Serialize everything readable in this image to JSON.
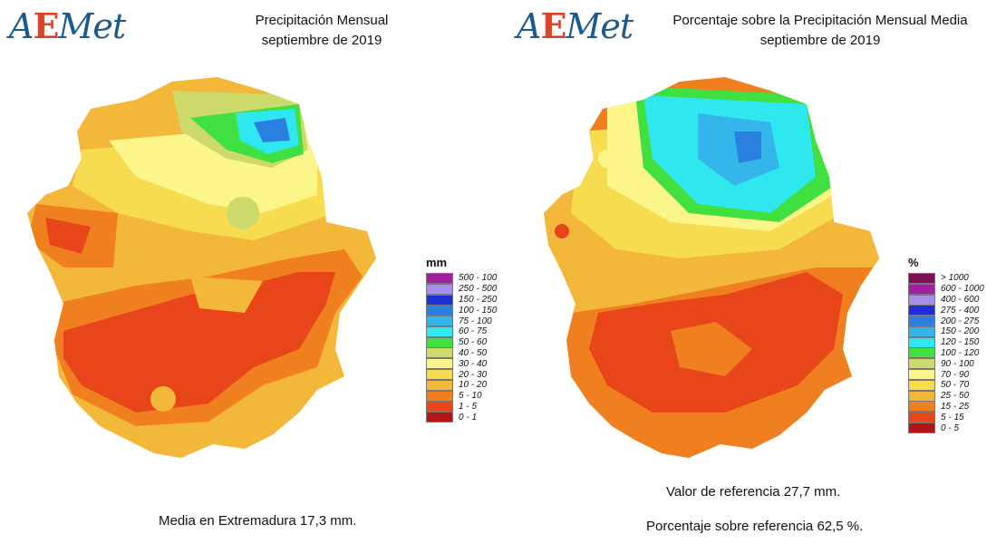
{
  "left": {
    "logo": "AEMet",
    "title_line1": "Precipitación Mensual",
    "title_line2": "septiembre de 2019",
    "legend_unit": "mm",
    "legend": [
      {
        "label": "500 - 100",
        "color": "#a020a0"
      },
      {
        "label": "250 - 500",
        "color": "#a78ee8"
      },
      {
        "label": "150 - 250",
        "color": "#1f2fd6"
      },
      {
        "label": "100 - 150",
        "color": "#2a7fe0"
      },
      {
        "label": "75 - 100",
        "color": "#35b6ea"
      },
      {
        "label": "60 - 75",
        "color": "#2fe7ef"
      },
      {
        "label": "50 - 60",
        "color": "#40e040"
      },
      {
        "label": "40 - 50",
        "color": "#cdd96a"
      },
      {
        "label": "30 - 40",
        "color": "#fbf58a"
      },
      {
        "label": "20 - 30",
        "color": "#f7dc4f"
      },
      {
        "label": "10 - 20",
        "color": "#f3b73a"
      },
      {
        "label": "5 - 10",
        "color": "#ef7f1f"
      },
      {
        "label": "1 - 5",
        "color": "#e8451a"
      },
      {
        "label": "0 - 1",
        "color": "#b01616"
      }
    ],
    "caption": "Media en Extremadura 17,3 mm."
  },
  "right": {
    "logo": "AEMet",
    "title_line1": "Porcentaje sobre la Precipitación Mensual Media",
    "title_line2": "septiembre de 2019",
    "legend_unit": "%",
    "legend": [
      {
        "label": "> 1000",
        "color": "#80105a"
      },
      {
        "label": "600 - 1000",
        "color": "#a020a0"
      },
      {
        "label": "400 - 600",
        "color": "#a78ee8"
      },
      {
        "label": "275 - 400",
        "color": "#1f2fd6"
      },
      {
        "label": "200 - 275",
        "color": "#2a7fe0"
      },
      {
        "label": "150 - 200",
        "color": "#35b6ea"
      },
      {
        "label": "120 - 150",
        "color": "#2fe7ef"
      },
      {
        "label": "100 - 120",
        "color": "#40e040"
      },
      {
        "label": "90 - 100",
        "color": "#cdd96a"
      },
      {
        "label": "70 - 90",
        "color": "#fbf58a"
      },
      {
        "label": "50 - 70",
        "color": "#f7dc4f"
      },
      {
        "label": "25 - 50",
        "color": "#f3b73a"
      },
      {
        "label": "15 - 25",
        "color": "#ef7f1f"
      },
      {
        "label": "5 - 15",
        "color": "#e8451a"
      },
      {
        "label": "0 - 5",
        "color": "#b01616"
      }
    ],
    "caption_ref": "Valor de referencia 27,7 mm.",
    "caption_pct": "Porcentaje sobre referencia 62,5 %."
  }
}
